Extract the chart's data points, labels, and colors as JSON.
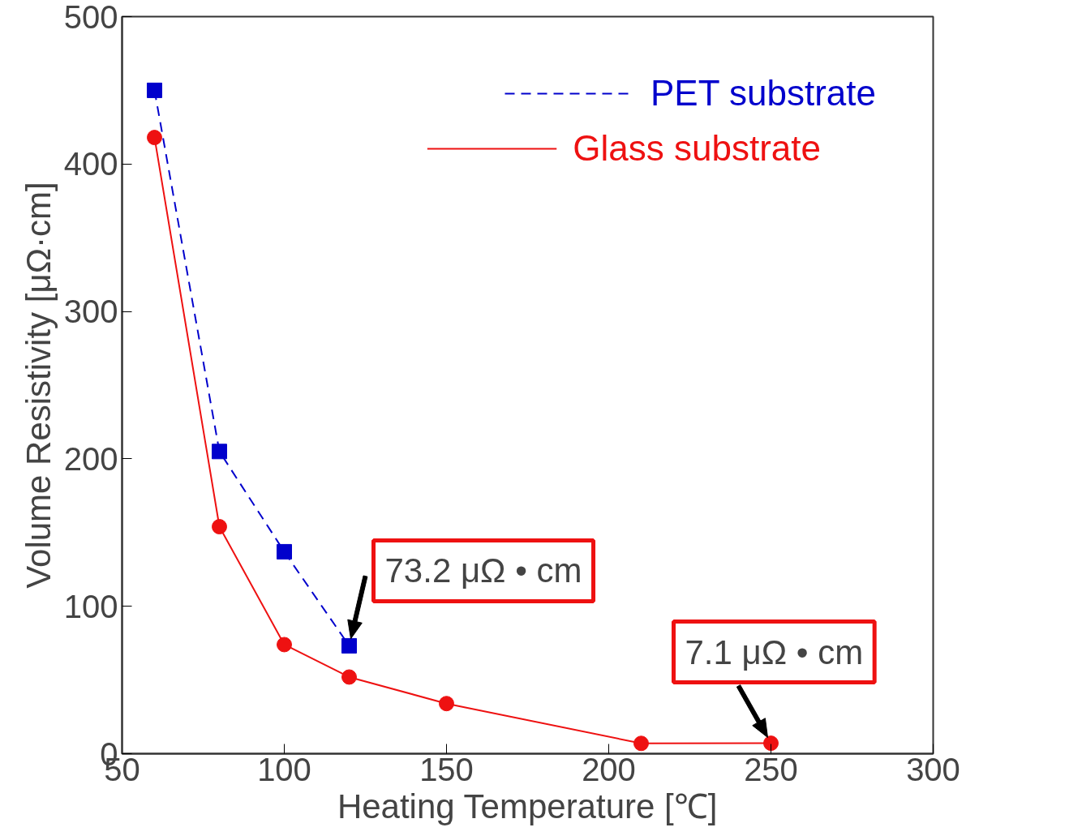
{
  "chart_data": {
    "type": "line",
    "xlabel": "Heating Temperature [℃]",
    "ylabel": "Volume Resistivity [μΩ·cm]",
    "xlim": [
      50,
      300
    ],
    "xticks": [
      50,
      100,
      150,
      200,
      250,
      300
    ],
    "ylim": [
      0,
      500
    ],
    "yticks": [
      0,
      100,
      200,
      300,
      400,
      500
    ],
    "grid": false,
    "legend": "top right",
    "series": [
      {
        "name": "PET substrate",
        "color": "#0000cc",
        "x": [
          60,
          80,
          100,
          120
        ],
        "values": [
          450,
          205,
          137,
          73.2
        ],
        "marker": "square",
        "line_style": "dashed"
      },
      {
        "name": "Glass substrate",
        "color": "#ee1111",
        "x": [
          60,
          80,
          100,
          120,
          150,
          210,
          250
        ],
        "values": [
          418,
          154,
          74,
          52,
          34,
          7,
          7.1
        ],
        "marker": "circle",
        "line_style": "solid"
      }
    ],
    "annotations": [
      {
        "text": "73.2 μΩ • cm",
        "x": 120,
        "y": 73.2
      },
      {
        "text": "7.1 μΩ • cm",
        "x": 250,
        "y": 7.1
      }
    ]
  }
}
